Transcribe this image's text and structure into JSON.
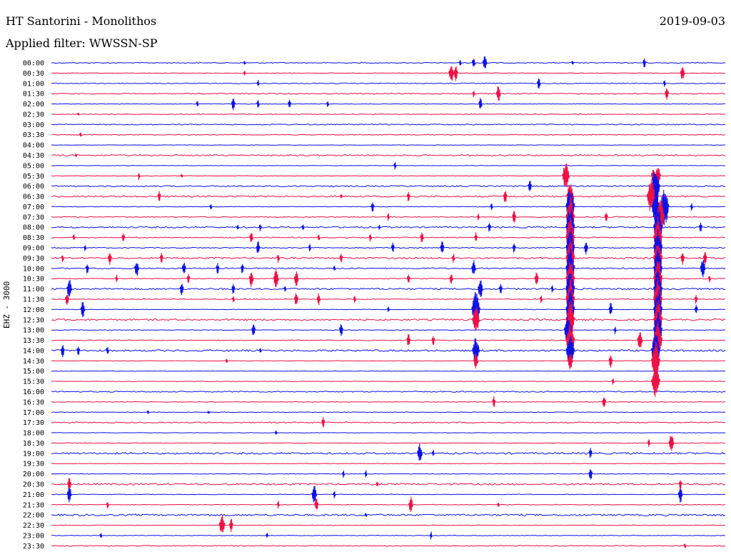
{
  "header": {
    "station": "HT Santorini - Monolithos",
    "date": "2019-09-03",
    "filter": "Applied filter: WWSSN-SP"
  },
  "side_label": "EHZ - 3000",
  "colors": {
    "even": "#0b12e6",
    "odd": "#ee1046"
  },
  "chart_data": {
    "type": "line",
    "title": "HT Santorini - Monolithos",
    "subtitle": "Applied filter: WWSSN-SP",
    "ylabel": "EHZ - 3000",
    "rows": [
      "00:00",
      "00:30",
      "01:00",
      "01:30",
      "02:00",
      "02:30",
      "03:00",
      "03:30",
      "04:00",
      "04:30",
      "05:00",
      "05:30",
      "06:00",
      "06:30",
      "07:00",
      "07:30",
      "08:00",
      "08:30",
      "09:00",
      "09:30",
      "10:00",
      "10:30",
      "11:00",
      "11:30",
      "12:00",
      "12:30",
      "13:00",
      "13:30",
      "14:00",
      "14:30",
      "15:00",
      "15:30",
      "16:00",
      "16:30",
      "17:00",
      "17:30",
      "18:00",
      "18:30",
      "19:00",
      "19:30",
      "20:00",
      "20:30",
      "21:00",
      "21:30",
      "22:00",
      "22:30",
      "23:00",
      "23:30"
    ],
    "x_range_minutes": [
      0,
      30
    ],
    "noise": [
      0.6,
      0.4,
      0.6,
      0.7,
      0.4,
      0.5,
      0.7,
      0.5,
      0.3,
      0.9,
      0.3,
      0.4,
      0.9,
      1.0,
      0.4,
      0.6,
      1.0,
      0.6,
      0.7,
      1.1,
      0.8,
      0.6,
      1.1,
      0.5,
      0.4,
      1.2,
      0.4,
      0.5,
      1.2,
      0.3,
      0.3,
      0.4,
      0.8,
      0.4,
      0.4,
      0.8,
      0.3,
      0.4,
      1.2,
      0.3,
      0.4,
      1.2,
      0.4,
      0.4,
      1.2,
      0.4,
      0.4,
      0.6
    ],
    "events": [
      {
        "row": 0,
        "t": 8.6,
        "a": 3
      },
      {
        "row": 0,
        "t": 18.2,
        "a": 5
      },
      {
        "row": 0,
        "t": 18.8,
        "a": 9
      },
      {
        "row": 0,
        "t": 19.3,
        "a": 12
      },
      {
        "row": 0,
        "t": 23.2,
        "a": 3
      },
      {
        "row": 0,
        "t": 26.4,
        "a": 8
      },
      {
        "row": 1,
        "t": 8.6,
        "a": 4
      },
      {
        "row": 1,
        "t": 17.8,
        "a": 14
      },
      {
        "row": 1,
        "t": 18.0,
        "a": 11
      },
      {
        "row": 1,
        "t": 28.1,
        "a": 12
      },
      {
        "row": 2,
        "t": 9.2,
        "a": 5
      },
      {
        "row": 2,
        "t": 21.7,
        "a": 9
      },
      {
        "row": 2,
        "t": 27.3,
        "a": 6
      },
      {
        "row": 3,
        "t": 18.8,
        "a": 5
      },
      {
        "row": 3,
        "t": 19.9,
        "a": 12
      },
      {
        "row": 3,
        "t": 27.4,
        "a": 10
      },
      {
        "row": 4,
        "t": 6.5,
        "a": 5
      },
      {
        "row": 4,
        "t": 8.1,
        "a": 10
      },
      {
        "row": 4,
        "t": 9.2,
        "a": 7
      },
      {
        "row": 4,
        "t": 10.6,
        "a": 8
      },
      {
        "row": 4,
        "t": 12.3,
        "a": 5
      },
      {
        "row": 4,
        "t": 19.1,
        "a": 9
      },
      {
        "row": 5,
        "t": 1.2,
        "a": 2
      },
      {
        "row": 7,
        "t": 1.3,
        "a": 4
      },
      {
        "row": 9,
        "t": 1.1,
        "a": 2
      },
      {
        "row": 10,
        "t": 15.3,
        "a": 6
      },
      {
        "row": 11,
        "t": 3.9,
        "a": 6
      },
      {
        "row": 11,
        "t": 5.8,
        "a": 3
      },
      {
        "row": 11,
        "t": 27.0,
        "a": 16
      },
      {
        "row": 11,
        "t": 26.8,
        "a": 12
      },
      {
        "row": 11,
        "t": 22.9,
        "a": 20
      },
      {
        "row": 12,
        "t": 21.3,
        "a": 10
      },
      {
        "row": 12,
        "t": 26.9,
        "a": 24
      },
      {
        "row": 13,
        "t": 4.8,
        "a": 8
      },
      {
        "row": 13,
        "t": 12.9,
        "a": 4
      },
      {
        "row": 13,
        "t": 15.9,
        "a": 8
      },
      {
        "row": 13,
        "t": 20.2,
        "a": 10
      },
      {
        "row": 13,
        "t": 26.7,
        "a": 24
      },
      {
        "row": 13,
        "t": 23.1,
        "a": 20
      },
      {
        "row": 14,
        "t": 7.1,
        "a": 5
      },
      {
        "row": 14,
        "t": 14.3,
        "a": 8
      },
      {
        "row": 14,
        "t": 19.6,
        "a": 6
      },
      {
        "row": 14,
        "t": 23.1,
        "a": 30
      },
      {
        "row": 14,
        "t": 26.9,
        "a": 22
      },
      {
        "row": 14,
        "t": 27.3,
        "a": 30
      },
      {
        "row": 14,
        "t": 28.5,
        "a": 6
      },
      {
        "row": 15,
        "t": 15.0,
        "a": 6
      },
      {
        "row": 15,
        "t": 19.0,
        "a": 5
      },
      {
        "row": 15,
        "t": 20.6,
        "a": 10
      },
      {
        "row": 15,
        "t": 24.7,
        "a": 8
      },
      {
        "row": 15,
        "t": 23.1,
        "a": 30
      },
      {
        "row": 15,
        "t": 27.1,
        "a": 30
      },
      {
        "row": 16,
        "t": 8.3,
        "a": 4
      },
      {
        "row": 16,
        "t": 9.3,
        "a": 6
      },
      {
        "row": 16,
        "t": 11.2,
        "a": 5
      },
      {
        "row": 16,
        "t": 14.6,
        "a": 4
      },
      {
        "row": 16,
        "t": 19.5,
        "a": 8
      },
      {
        "row": 16,
        "t": 23.1,
        "a": 30
      },
      {
        "row": 16,
        "t": 27.0,
        "a": 30
      },
      {
        "row": 16,
        "t": 28.9,
        "a": 8
      },
      {
        "row": 17,
        "t": 1.0,
        "a": 6
      },
      {
        "row": 17,
        "t": 3.2,
        "a": 8
      },
      {
        "row": 17,
        "t": 8.9,
        "a": 9
      },
      {
        "row": 17,
        "t": 11.9,
        "a": 6
      },
      {
        "row": 17,
        "t": 14.2,
        "a": 7
      },
      {
        "row": 17,
        "t": 16.5,
        "a": 9
      },
      {
        "row": 17,
        "t": 18.9,
        "a": 8
      },
      {
        "row": 17,
        "t": 23.1,
        "a": 30
      },
      {
        "row": 17,
        "t": 27.0,
        "a": 30
      },
      {
        "row": 18,
        "t": 1.5,
        "a": 5
      },
      {
        "row": 18,
        "t": 9.2,
        "a": 10
      },
      {
        "row": 18,
        "t": 11.5,
        "a": 6
      },
      {
        "row": 18,
        "t": 15.2,
        "a": 8
      },
      {
        "row": 18,
        "t": 17.4,
        "a": 10
      },
      {
        "row": 18,
        "t": 20.6,
        "a": 8
      },
      {
        "row": 18,
        "t": 23.1,
        "a": 30
      },
      {
        "row": 18,
        "t": 23.8,
        "a": 10
      },
      {
        "row": 18,
        "t": 27.0,
        "a": 30
      },
      {
        "row": 19,
        "t": 0.5,
        "a": 6
      },
      {
        "row": 19,
        "t": 2.6,
        "a": 10
      },
      {
        "row": 19,
        "t": 4.9,
        "a": 8
      },
      {
        "row": 19,
        "t": 10.1,
        "a": 7
      },
      {
        "row": 19,
        "t": 12.9,
        "a": 8
      },
      {
        "row": 19,
        "t": 17.9,
        "a": 7
      },
      {
        "row": 19,
        "t": 23.1,
        "a": 30
      },
      {
        "row": 19,
        "t": 27.0,
        "a": 30
      },
      {
        "row": 19,
        "t": 28.1,
        "a": 10
      },
      {
        "row": 19,
        "t": 29.1,
        "a": 10
      },
      {
        "row": 20,
        "t": 1.6,
        "a": 8
      },
      {
        "row": 20,
        "t": 3.8,
        "a": 12
      },
      {
        "row": 20,
        "t": 5.9,
        "a": 10
      },
      {
        "row": 20,
        "t": 7.4,
        "a": 8
      },
      {
        "row": 20,
        "t": 8.5,
        "a": 8
      },
      {
        "row": 20,
        "t": 12.6,
        "a": 5
      },
      {
        "row": 20,
        "t": 18.8,
        "a": 12
      },
      {
        "row": 20,
        "t": 23.1,
        "a": 30
      },
      {
        "row": 20,
        "t": 27.0,
        "a": 30
      },
      {
        "row": 20,
        "t": 29.0,
        "a": 14
      },
      {
        "row": 21,
        "t": 2.9,
        "a": 6
      },
      {
        "row": 21,
        "t": 6.1,
        "a": 8
      },
      {
        "row": 21,
        "t": 8.9,
        "a": 12
      },
      {
        "row": 21,
        "t": 10.0,
        "a": 14
      },
      {
        "row": 21,
        "t": 10.9,
        "a": 12
      },
      {
        "row": 21,
        "t": 15.9,
        "a": 8
      },
      {
        "row": 21,
        "t": 17.8,
        "a": 9
      },
      {
        "row": 21,
        "t": 21.6,
        "a": 10
      },
      {
        "row": 21,
        "t": 23.1,
        "a": 30
      },
      {
        "row": 21,
        "t": 27.0,
        "a": 30
      },
      {
        "row": 21,
        "t": 29.3,
        "a": 6
      },
      {
        "row": 22,
        "t": 0.8,
        "a": 14
      },
      {
        "row": 22,
        "t": 5.8,
        "a": 10
      },
      {
        "row": 22,
        "t": 8.1,
        "a": 8
      },
      {
        "row": 22,
        "t": 10.4,
        "a": 6
      },
      {
        "row": 22,
        "t": 19.1,
        "a": 14
      },
      {
        "row": 22,
        "t": 20.0,
        "a": 8
      },
      {
        "row": 22,
        "t": 22.3,
        "a": 6
      },
      {
        "row": 22,
        "t": 23.1,
        "a": 30
      },
      {
        "row": 22,
        "t": 27.0,
        "a": 30
      },
      {
        "row": 23,
        "t": 0.7,
        "a": 10
      },
      {
        "row": 23,
        "t": 8.1,
        "a": 6
      },
      {
        "row": 23,
        "t": 10.9,
        "a": 10
      },
      {
        "row": 23,
        "t": 11.9,
        "a": 9
      },
      {
        "row": 23,
        "t": 13.5,
        "a": 6
      },
      {
        "row": 23,
        "t": 21.8,
        "a": 6
      },
      {
        "row": 23,
        "t": 23.1,
        "a": 30
      },
      {
        "row": 23,
        "t": 27.0,
        "a": 30
      },
      {
        "row": 23,
        "t": 28.7,
        "a": 8
      },
      {
        "row": 24,
        "t": 1.4,
        "a": 12
      },
      {
        "row": 24,
        "t": 15.0,
        "a": 4
      },
      {
        "row": 24,
        "t": 18.9,
        "a": 26
      },
      {
        "row": 24,
        "t": 23.1,
        "a": 30
      },
      {
        "row": 24,
        "t": 24.9,
        "a": 10
      },
      {
        "row": 24,
        "t": 27.0,
        "a": 30
      },
      {
        "row": 24,
        "t": 28.7,
        "a": 8
      },
      {
        "row": 25,
        "t": 18.9,
        "a": 20
      },
      {
        "row": 25,
        "t": 23.1,
        "a": 30
      },
      {
        "row": 25,
        "t": 27.0,
        "a": 30
      },
      {
        "row": 26,
        "t": 9.0,
        "a": 10
      },
      {
        "row": 26,
        "t": 12.9,
        "a": 10
      },
      {
        "row": 26,
        "t": 23.0,
        "a": 22
      },
      {
        "row": 26,
        "t": 25.1,
        "a": 6
      },
      {
        "row": 26,
        "t": 27.0,
        "a": 30
      },
      {
        "row": 27,
        "t": 15.9,
        "a": 10
      },
      {
        "row": 27,
        "t": 17.0,
        "a": 8
      },
      {
        "row": 27,
        "t": 23.1,
        "a": 24
      },
      {
        "row": 27,
        "t": 26.2,
        "a": 14
      },
      {
        "row": 27,
        "t": 27.0,
        "a": 30
      },
      {
        "row": 28,
        "t": 0.5,
        "a": 10
      },
      {
        "row": 28,
        "t": 1.2,
        "a": 8
      },
      {
        "row": 28,
        "t": 2.5,
        "a": 7
      },
      {
        "row": 28,
        "t": 9.3,
        "a": 4
      },
      {
        "row": 28,
        "t": 18.9,
        "a": 20
      },
      {
        "row": 28,
        "t": 23.1,
        "a": 24
      },
      {
        "row": 28,
        "t": 26.9,
        "a": 30
      },
      {
        "row": 29,
        "t": 7.8,
        "a": 3
      },
      {
        "row": 29,
        "t": 18.9,
        "a": 12
      },
      {
        "row": 29,
        "t": 23.1,
        "a": 14
      },
      {
        "row": 29,
        "t": 24.9,
        "a": 10
      },
      {
        "row": 29,
        "t": 26.9,
        "a": 30
      },
      {
        "row": 31,
        "t": 25.0,
        "a": 5
      },
      {
        "row": 31,
        "t": 26.9,
        "a": 24
      },
      {
        "row": 33,
        "t": 19.7,
        "a": 8
      },
      {
        "row": 33,
        "t": 24.6,
        "a": 10
      },
      {
        "row": 34,
        "t": 4.3,
        "a": 3
      },
      {
        "row": 34,
        "t": 7.0,
        "a": 2
      },
      {
        "row": 35,
        "t": 12.1,
        "a": 8
      },
      {
        "row": 36,
        "t": 10.0,
        "a": 3
      },
      {
        "row": 37,
        "t": 26.6,
        "a": 6
      },
      {
        "row": 37,
        "t": 27.6,
        "a": 14
      },
      {
        "row": 38,
        "t": 16.4,
        "a": 14
      },
      {
        "row": 38,
        "t": 17.0,
        "a": 5
      },
      {
        "row": 38,
        "t": 24.0,
        "a": 8
      },
      {
        "row": 40,
        "t": 13.0,
        "a": 6
      },
      {
        "row": 40,
        "t": 14.0,
        "a": 6
      },
      {
        "row": 40,
        "t": 24.0,
        "a": 10
      },
      {
        "row": 41,
        "t": 0.8,
        "a": 10
      },
      {
        "row": 41,
        "t": 14.5,
        "a": 4
      },
      {
        "row": 41,
        "t": 28.0,
        "a": 8
      },
      {
        "row": 42,
        "t": 0.8,
        "a": 12
      },
      {
        "row": 42,
        "t": 11.7,
        "a": 14
      },
      {
        "row": 42,
        "t": 12.6,
        "a": 6
      },
      {
        "row": 42,
        "t": 28.0,
        "a": 12
      },
      {
        "row": 43,
        "t": 2.5,
        "a": 6
      },
      {
        "row": 43,
        "t": 10.1,
        "a": 6
      },
      {
        "row": 43,
        "t": 11.8,
        "a": 10
      },
      {
        "row": 43,
        "t": 16.0,
        "a": 12
      },
      {
        "row": 43,
        "t": 19.9,
        "a": 4
      },
      {
        "row": 44,
        "t": 14.0,
        "a": 3
      },
      {
        "row": 45,
        "t": 7.6,
        "a": 16
      },
      {
        "row": 45,
        "t": 8.0,
        "a": 10
      },
      {
        "row": 46,
        "t": 2.2,
        "a": 5
      },
      {
        "row": 46,
        "t": 9.6,
        "a": 4
      },
      {
        "row": 46,
        "t": 16.9,
        "a": 6
      },
      {
        "row": 47,
        "t": 28.2,
        "a": 4
      }
    ]
  }
}
